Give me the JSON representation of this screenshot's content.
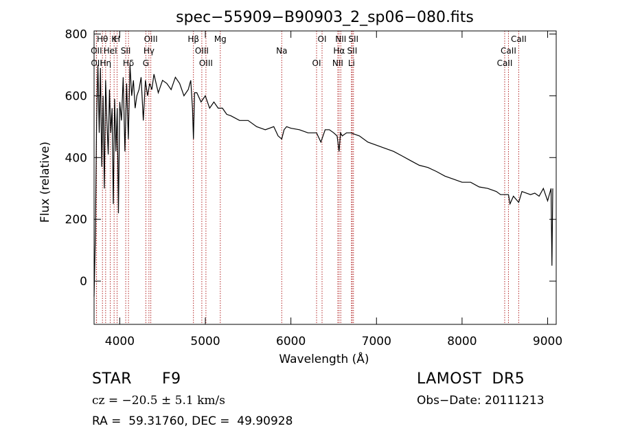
{
  "chart_data": {
    "type": "line",
    "title": "spec−55909−B90903_2_sp06−080.fits",
    "xlabel": "Wavelength (Å)",
    "ylabel": "Flux (relative)",
    "xlim": [
      3700,
      9100
    ],
    "ylim": [
      -140,
      810
    ],
    "xticks": [
      4000,
      5000,
      6000,
      7000,
      8000,
      9000
    ],
    "yticks": [
      0,
      200,
      400,
      600,
      800
    ],
    "grid": false,
    "line_color": "#000000",
    "marker_color": "#b22222",
    "x": [
      3700,
      3715,
      3730,
      3745,
      3760,
      3775,
      3790,
      3805,
      3820,
      3835,
      3850,
      3865,
      3880,
      3895,
      3910,
      3925,
      3940,
      3955,
      3970,
      3985,
      4000,
      4020,
      4040,
      4060,
      4080,
      4100,
      4120,
      4140,
      4160,
      4180,
      4200,
      4225,
      4250,
      4275,
      4300,
      4325,
      4350,
      4375,
      4400,
      4450,
      4500,
      4550,
      4600,
      4650,
      4700,
      4750,
      4800,
      4830,
      4850,
      4861,
      4875,
      4900,
      4950,
      5000,
      5050,
      5100,
      5150,
      5200,
      5250,
      5300,
      5400,
      5500,
      5600,
      5700,
      5800,
      5850,
      5893,
      5920,
      5950,
      6000,
      6100,
      6200,
      6300,
      6350,
      6400,
      6450,
      6500,
      6540,
      6563,
      6580,
      6600,
      6650,
      6700,
      6800,
      6900,
      7000,
      7100,
      7200,
      7300,
      7400,
      7500,
      7600,
      7700,
      7800,
      7900,
      8000,
      8100,
      8200,
      8300,
      8400,
      8450,
      8500,
      8542,
      8560,
      8600,
      8662,
      8700,
      8800,
      8850,
      8900,
      8950,
      9000,
      9040,
      9050,
      9060
    ],
    "values": [
      -50,
      150,
      520,
      700,
      480,
      690,
      370,
      600,
      300,
      650,
      520,
      410,
      620,
      480,
      560,
      250,
      590,
      420,
      560,
      220,
      580,
      520,
      660,
      420,
      640,
      460,
      700,
      600,
      650,
      560,
      600,
      620,
      660,
      520,
      650,
      600,
      640,
      620,
      670,
      610,
      650,
      640,
      620,
      660,
      640,
      600,
      620,
      650,
      560,
      460,
      610,
      610,
      580,
      600,
      560,
      580,
      560,
      560,
      540,
      535,
      520,
      520,
      500,
      490,
      500,
      470,
      460,
      490,
      500,
      495,
      490,
      480,
      480,
      450,
      490,
      490,
      480,
      470,
      420,
      480,
      470,
      480,
      480,
      470,
      450,
      440,
      430,
      420,
      405,
      390,
      375,
      368,
      355,
      340,
      330,
      320,
      320,
      305,
      300,
      290,
      280,
      280,
      280,
      250,
      275,
      255,
      290,
      280,
      285,
      275,
      300,
      260,
      300,
      50,
      300
    ],
    "lines": [
      {
        "label": "Hθ",
        "wl": 3798
      },
      {
        "label": "OII",
        "wl": 3727
      },
      {
        "label": "OII",
        "wl": 3729
      },
      {
        "label": "K",
        "wl": 3934
      },
      {
        "label": "HeI",
        "wl": 3889
      },
      {
        "label": "Hη",
        "wl": 3835
      },
      {
        "label": "H",
        "wl": 3969
      },
      {
        "label": "SII",
        "wl": 4070
      },
      {
        "label": "Hδ",
        "wl": 4102
      },
      {
        "label": "OIII",
        "wl": 4363
      },
      {
        "label": "Hγ",
        "wl": 4341
      },
      {
        "label": "G",
        "wl": 4305
      },
      {
        "label": "Hβ",
        "wl": 4861
      },
      {
        "label": "OIII",
        "wl": 4959
      },
      {
        "label": "OIII",
        "wl": 5007
      },
      {
        "label": "Mg",
        "wl": 5175
      },
      {
        "label": "Na",
        "wl": 5893
      },
      {
        "label": "OI",
        "wl": 6300
      },
      {
        "label": "OI",
        "wl": 6364
      },
      {
        "label": "Hα",
        "wl": 6563
      },
      {
        "label": "NII",
        "wl": 6548
      },
      {
        "label": "NII",
        "wl": 6583
      },
      {
        "label": "SII",
        "wl": 6716
      },
      {
        "label": "Li",
        "wl": 6708
      },
      {
        "label": "SII",
        "wl": 6731
      },
      {
        "label": "CaII",
        "wl": 8542
      },
      {
        "label": "CaII",
        "wl": 8498
      },
      {
        "label": "CaII",
        "wl": 8662
      }
    ]
  },
  "info": {
    "class_label": "STAR",
    "subclass": "F9",
    "survey": "LAMOST  DR5",
    "cz": "cz = −20.5 ± 5.1 km/s",
    "obs_date": "Obs−Date: 20111213",
    "radec": "RA =  59.31760, DEC =  49.90928"
  }
}
